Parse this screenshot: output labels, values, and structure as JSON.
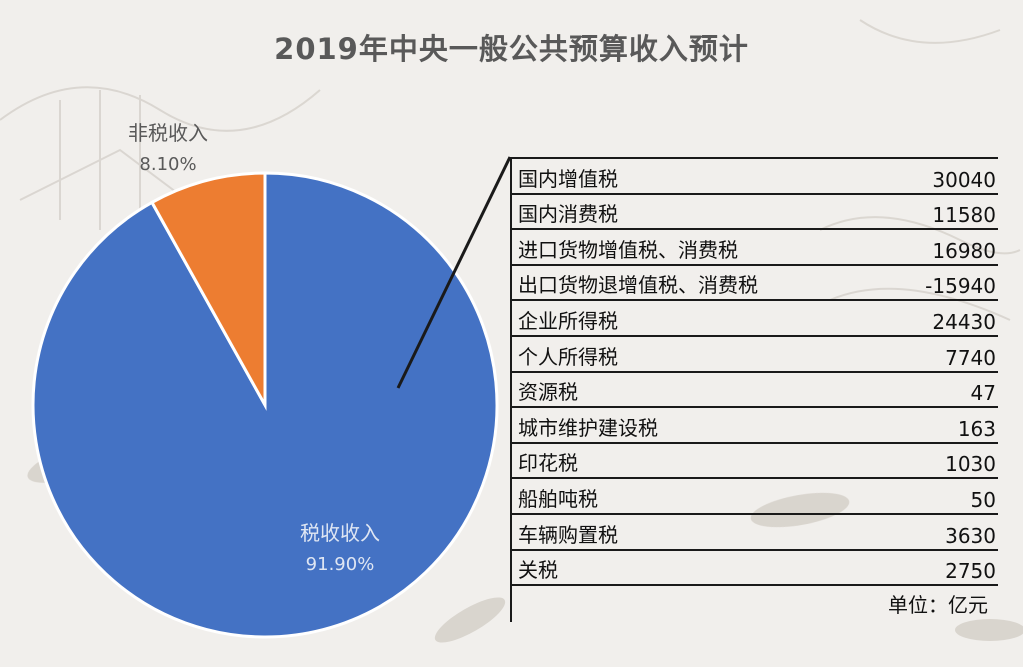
{
  "title": "2019年中央一般公共预算收入预计",
  "colors": {
    "tax": "#4472c4",
    "nontax": "#ed7d31",
    "label": "#595959"
  },
  "chart_data": [
    {
      "type": "pie",
      "title": "2019年中央一般公共预算收入预计",
      "slices": [
        {
          "label": "税收收入",
          "value": 91.9,
          "display": "91.90%"
        },
        {
          "label": "非税收入",
          "value": 8.1,
          "display": "8.10%"
        }
      ]
    },
    {
      "type": "table",
      "rows": [
        {
          "name": "国内增值税",
          "value": "30040"
        },
        {
          "name": "国内消费税",
          "value": "11580"
        },
        {
          "name": "进口货物增值税、消费税",
          "value": "16980"
        },
        {
          "name": "出口货物退增值税、消费税",
          "value": "-15940"
        },
        {
          "name": "企业所得税",
          "value": "24430"
        },
        {
          "name": "个人所得税",
          "value": "7740"
        },
        {
          "name": "资源税",
          "value": "47"
        },
        {
          "name": "城市维护建设税",
          "value": "163"
        },
        {
          "name": "印花税",
          "value": "1030"
        },
        {
          "name": "船舶吨税",
          "value": "50"
        },
        {
          "name": "车辆购置税",
          "value": "3630"
        },
        {
          "name": "关税",
          "value": "2750"
        }
      ],
      "unit": "单位：亿元"
    }
  ]
}
